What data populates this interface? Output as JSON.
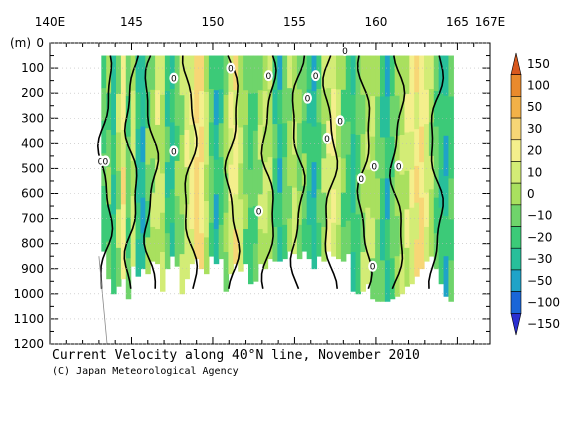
{
  "chart_data": {
    "type": "heatmap",
    "title": "Current Velocity along 40°N line, November 2010",
    "credit": "(C) Japan Meteorological Agency",
    "ylabel": "(m)",
    "x_ticks": [
      {
        "value": 140,
        "label": "140E"
      },
      {
        "value": 145,
        "label": "145"
      },
      {
        "value": 150,
        "label": "150"
      },
      {
        "value": 155,
        "label": "155"
      },
      {
        "value": 160,
        "label": "160"
      },
      {
        "value": 165,
        "label": "165"
      },
      {
        "value": 167,
        "label": "167E"
      }
    ],
    "xlim": [
      140,
      167
    ],
    "ylim": [
      0,
      1200
    ],
    "y_ticks": [
      0,
      100,
      200,
      300,
      400,
      500,
      600,
      700,
      800,
      900,
      1000,
      1100,
      1200
    ],
    "y_reversed": true,
    "colorbar": {
      "levels": [
        "150",
        "100",
        "50",
        "30",
        "20",
        "10",
        "0",
        "−10",
        "−20",
        "−30",
        "−50",
        "−100",
        "−150"
      ],
      "colors": [
        "#d8581e",
        "#e98a2c",
        "#f2b148",
        "#f7d676",
        "#f4ef8c",
        "#d3ec76",
        "#a9e05f",
        "#6fd46b",
        "#3cca78",
        "#28bf9a",
        "#1fa3c8",
        "#1a66d8",
        "#2a2fd0"
      ]
    },
    "section_columns": [
      {
        "lon": 143.3,
        "bottom": 830,
        "value": -12
      },
      {
        "lon": 143.6,
        "bottom": 940,
        "value": -5
      },
      {
        "lon": 143.9,
        "bottom": 1000,
        "value": -18
      },
      {
        "lon": 144.2,
        "bottom": 970,
        "value": 3
      },
      {
        "lon": 144.5,
        "bottom": 940,
        "value": 25
      },
      {
        "lon": 144.8,
        "bottom": 1020,
        "value": -8
      },
      {
        "lon": 145.1,
        "bottom": 890,
        "value": 12
      },
      {
        "lon": 145.4,
        "bottom": 930,
        "value": -20
      },
      {
        "lon": 145.7,
        "bottom": 900,
        "value": -28
      },
      {
        "lon": 146.0,
        "bottom": 920,
        "value": -6
      },
      {
        "lon": 146.3,
        "bottom": 870,
        "value": 4
      },
      {
        "lon": 146.6,
        "bottom": 880,
        "value": 14
      },
      {
        "lon": 146.9,
        "bottom": 990,
        "value": 9
      },
      {
        "lon": 147.2,
        "bottom": 900,
        "value": -15
      },
      {
        "lon": 147.5,
        "bottom": 850,
        "value": -22
      },
      {
        "lon": 147.8,
        "bottom": 890,
        "value": -4
      },
      {
        "lon": 148.1,
        "bottom": 1000,
        "value": 6
      },
      {
        "lon": 148.4,
        "bottom": 940,
        "value": 16
      },
      {
        "lon": 148.7,
        "bottom": 880,
        "value": 22
      },
      {
        "lon": 149.0,
        "bottom": 860,
        "value": 35
      },
      {
        "lon": 149.3,
        "bottom": 900,
        "value": 28
      },
      {
        "lon": 149.6,
        "bottom": 920,
        "value": 8
      },
      {
        "lon": 149.9,
        "bottom": 850,
        "value": -10
      },
      {
        "lon": 150.2,
        "bottom": 880,
        "value": -26
      },
      {
        "lon": 150.5,
        "bottom": 860,
        "value": -14
      },
      {
        "lon": 150.8,
        "bottom": 990,
        "value": 2
      },
      {
        "lon": 151.1,
        "bottom": 920,
        "value": 18
      },
      {
        "lon": 151.4,
        "bottom": 880,
        "value": 24
      },
      {
        "lon": 151.7,
        "bottom": 910,
        "value": 12
      },
      {
        "lon": 152.0,
        "bottom": 880,
        "value": -3
      },
      {
        "lon": 152.3,
        "bottom": 960,
        "value": -12
      },
      {
        "lon": 152.6,
        "bottom": 950,
        "value": -8
      },
      {
        "lon": 152.9,
        "bottom": 880,
        "value": 5
      },
      {
        "lon": 153.2,
        "bottom": 900,
        "value": 12
      },
      {
        "lon": 153.5,
        "bottom": 860,
        "value": 7
      },
      {
        "lon": 153.8,
        "bottom": 870,
        "value": -16
      },
      {
        "lon": 154.1,
        "bottom": 870,
        "value": -24
      },
      {
        "lon": 154.4,
        "bottom": 860,
        "value": -9
      },
      {
        "lon": 154.7,
        "bottom": 830,
        "value": 3
      },
      {
        "lon": 155.0,
        "bottom": 840,
        "value": 10
      },
      {
        "lon": 155.3,
        "bottom": 860,
        "value": 2
      },
      {
        "lon": 155.6,
        "bottom": 830,
        "value": -7
      },
      {
        "lon": 155.9,
        "bottom": 860,
        "value": -18
      },
      {
        "lon": 156.2,
        "bottom": 900,
        "value": -25
      },
      {
        "lon": 156.5,
        "bottom": 850,
        "value": -11
      },
      {
        "lon": 156.8,
        "bottom": 870,
        "value": 4
      },
      {
        "lon": 157.1,
        "bottom": 830,
        "value": 15
      },
      {
        "lon": 157.4,
        "bottom": 850,
        "value": 21
      },
      {
        "lon": 157.7,
        "bottom": 860,
        "value": 8
      },
      {
        "lon": 158.0,
        "bottom": 870,
        "value": -5
      },
      {
        "lon": 158.3,
        "bottom": 840,
        "value": -14
      },
      {
        "lon": 158.6,
        "bottom": 990,
        "value": -21
      },
      {
        "lon": 158.9,
        "bottom": 1000,
        "value": -9
      },
      {
        "lon": 159.2,
        "bottom": 990,
        "value": 3
      },
      {
        "lon": 159.5,
        "bottom": 960,
        "value": 11
      },
      {
        "lon": 159.8,
        "bottom": 1020,
        "value": 6
      },
      {
        "lon": 160.1,
        "bottom": 1030,
        "value": -4
      },
      {
        "lon": 160.4,
        "bottom": 1030,
        "value": -15
      },
      {
        "lon": 160.7,
        "bottom": 1030,
        "value": -23
      },
      {
        "lon": 161.0,
        "bottom": 1020,
        "value": -12
      },
      {
        "lon": 161.3,
        "bottom": 1010,
        "value": 2
      },
      {
        "lon": 161.6,
        "bottom": 1000,
        "value": 9
      },
      {
        "lon": 161.9,
        "bottom": 970,
        "value": 14
      },
      {
        "lon": 162.2,
        "bottom": 960,
        "value": 19
      },
      {
        "lon": 162.5,
        "bottom": 930,
        "value": 26
      },
      {
        "lon": 162.8,
        "bottom": 900,
        "value": 30
      },
      {
        "lon": 163.1,
        "bottom": 870,
        "value": 18
      },
      {
        "lon": 163.4,
        "bottom": 850,
        "value": 6
      },
      {
        "lon": 163.7,
        "bottom": 900,
        "value": -8
      },
      {
        "lon": 164.0,
        "bottom": 960,
        "value": -19
      },
      {
        "lon": 164.3,
        "bottom": 1010,
        "value": -24
      },
      {
        "lon": 164.6,
        "bottom": 1030,
        "value": -12
      }
    ],
    "zero_contour_lons": [
      143.4,
      145.0,
      146.2,
      148.6,
      151.2,
      153.4,
      155.2,
      157.2,
      159.3,
      161.3,
      163.7
    ],
    "zero_labels": [
      {
        "lon": 143.1,
        "depth": 470,
        "text": "0"
      },
      {
        "lon": 143.4,
        "depth": 470,
        "text": "0"
      },
      {
        "lon": 147.6,
        "depth": 430,
        "text": "0"
      },
      {
        "lon": 147.6,
        "depth": 140,
        "text": "0"
      },
      {
        "lon": 151.1,
        "depth": 100,
        "text": "0"
      },
      {
        "lon": 153.4,
        "depth": 130,
        "text": "0"
      },
      {
        "lon": 152.8,
        "depth": 670,
        "text": "0"
      },
      {
        "lon": 155.8,
        "depth": 220,
        "text": "0"
      },
      {
        "lon": 156.3,
        "depth": 130,
        "text": "0"
      },
      {
        "lon": 157.0,
        "depth": 380,
        "text": "0"
      },
      {
        "lon": 157.8,
        "depth": 310,
        "text": "0"
      },
      {
        "lon": 158.1,
        "depth": 30,
        "text": "0"
      },
      {
        "lon": 159.1,
        "depth": 540,
        "text": "0"
      },
      {
        "lon": 159.9,
        "depth": 490,
        "text": "0"
      },
      {
        "lon": 159.8,
        "depth": 890,
        "text": "0"
      },
      {
        "lon": 161.4,
        "depth": 490,
        "text": "0"
      }
    ]
  }
}
